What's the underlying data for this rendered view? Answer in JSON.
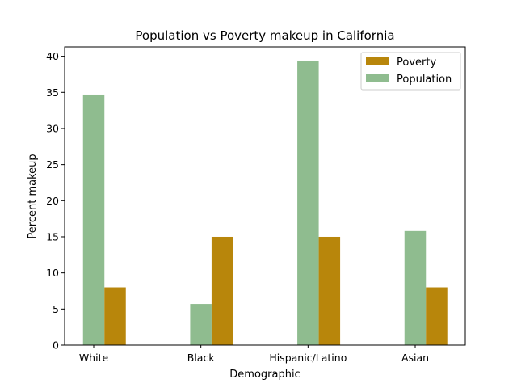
{
  "chart_data": {
    "type": "bar",
    "title": "Population vs Poverty makeup in California",
    "xlabel": "Demographic",
    "ylabel": "Percent makeup",
    "categories": [
      "White",
      "Black",
      "Hispanic/Latino",
      "Asian"
    ],
    "series": [
      {
        "name": "Population",
        "color": "#8fbc8f",
        "values": [
          34.7,
          5.7,
          39.4,
          15.8
        ]
      },
      {
        "name": "Poverty",
        "color": "#b8860b",
        "values": [
          8.0,
          15.0,
          15.0,
          8.0
        ]
      }
    ],
    "ylim": [
      0,
      41.3
    ],
    "yticks": [
      0,
      5,
      10,
      15,
      20,
      25,
      30,
      35,
      40
    ],
    "legend": {
      "position": "top-right",
      "entries": [
        {
          "name": "Poverty",
          "color": "#b8860b"
        },
        {
          "name": "Population",
          "color": "#8fbc8f"
        }
      ]
    },
    "grid": false
  }
}
